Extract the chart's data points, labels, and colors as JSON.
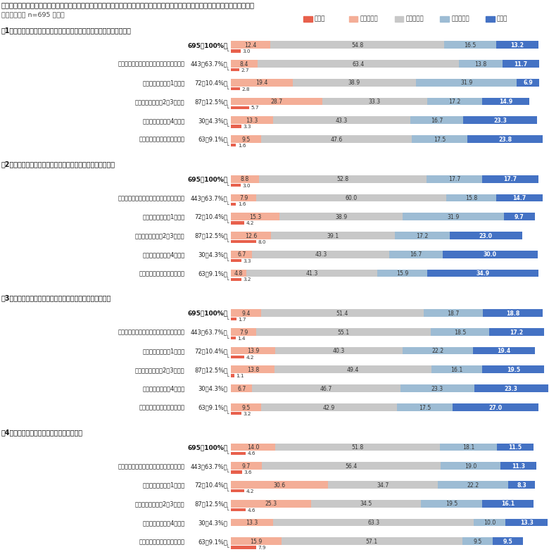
{
  "title": "新型コロナウイルス感染症の流行の前と現在で、あなた自身の社内外の人間関係や人とのつながりにどのような変化がありましたか。",
  "subtitle": "〈単一回答／ n=695 ／％〉",
  "legend_labels": [
    "増えた",
    "やや増えた",
    "変わらない",
    "やや減った",
    "減った"
  ],
  "colors": [
    "#E8604C",
    "#F4AE97",
    "#C8C8C8",
    "#9DBCD4",
    "#4472C4"
  ],
  "sections": [
    {
      "title": "（1）上司や職場の同僚など、社内の業務上の接点が多い人との関わり",
      "rows": [
        {
          "label_name": "",
          "label_n": "695（100%）",
          "indent": false,
          "values": [
            12.4,
            54.8,
            16.5,
            13.2
          ],
          "below": 3.0
        },
        {
          "label_name": "テレワークは（ほとんど）実施していない",
          "label_n": "443（63.7%）",
          "indent": true,
          "values": [
            8.4,
            63.4,
            13.8,
            11.7
          ],
          "below": 2.7
        },
        {
          "label_name": "テレワークは週に1日以下",
          "label_n": "72（10.4%）",
          "indent": true,
          "values": [
            19.4,
            38.9,
            31.9,
            6.9
          ],
          "below": 2.8
        },
        {
          "label_name": "テレワークは週に2～3日程度",
          "label_n": "87（12.5%）",
          "indent": true,
          "values": [
            28.7,
            33.3,
            17.2,
            14.9
          ],
          "below": 5.7
        },
        {
          "label_name": "テレワークは週に4日程度",
          "label_n": "30（4.3%）",
          "indent": true,
          "values": [
            13.3,
            43.3,
            16.7,
            23.3
          ],
          "below": 3.3
        },
        {
          "label_name": "（ほとんど）毎日テレワーク",
          "label_n": "63（9.1%）",
          "indent": true,
          "values": [
            9.5,
            47.6,
            17.5,
            23.8
          ],
          "below": 1.6
        }
      ]
    },
    {
      "title": "（2）他部署の人など、業務上あまり接点のない人との関わり",
      "rows": [
        {
          "label_name": "",
          "label_n": "695（100%）",
          "indent": false,
          "values": [
            8.8,
            52.8,
            17.7,
            17.7
          ],
          "below": 3.0
        },
        {
          "label_name": "テレワークは（ほとんど）実施していない",
          "label_n": "443（63.7%）",
          "indent": true,
          "values": [
            7.9,
            60.0,
            15.8,
            14.7
          ],
          "below": 1.6
        },
        {
          "label_name": "テレワークは週に1日以下",
          "label_n": "72（10.4%）",
          "indent": true,
          "values": [
            15.3,
            38.9,
            31.9,
            9.7
          ],
          "below": 4.2
        },
        {
          "label_name": "テレワークは週に2～3日程度",
          "label_n": "87（12.5%）",
          "indent": true,
          "values": [
            12.6,
            39.1,
            17.2,
            23.0
          ],
          "below": 8.0
        },
        {
          "label_name": "テレワークは週に4日程度",
          "label_n": "30（4.3%）",
          "indent": true,
          "values": [
            6.7,
            43.3,
            16.7,
            30.0
          ],
          "below": 3.3
        },
        {
          "label_name": "（ほとんど）毎日テレワーク",
          "label_n": "63（9.1%）",
          "indent": true,
          "values": [
            4.8,
            41.3,
            15.9,
            34.9
          ],
          "below": 3.2
        }
      ]
    },
    {
      "title": "（3）社外・仕事外の、日頃あまり接点のない人との関わり",
      "rows": [
        {
          "label_name": "",
          "label_n": "695（100%）",
          "indent": false,
          "values": [
            9.4,
            51.4,
            18.7,
            18.8
          ],
          "below": 1.7
        },
        {
          "label_name": "テレワークは（ほとんど）実施していない",
          "label_n": "443（63.7%）",
          "indent": true,
          "values": [
            7.9,
            55.1,
            18.5,
            17.2
          ],
          "below": 1.4
        },
        {
          "label_name": "テレワークは週に1日以下",
          "label_n": "72（10.4%）",
          "indent": true,
          "values": [
            13.9,
            40.3,
            22.2,
            19.4
          ],
          "below": 4.2
        },
        {
          "label_name": "テレワークは週に2～3日程度",
          "label_n": "87（12.5%）",
          "indent": true,
          "values": [
            13.8,
            49.4,
            16.1,
            19.5
          ],
          "below": 1.1
        },
        {
          "label_name": "テレワークは週に4日程度",
          "label_n": "30（4.3%）",
          "indent": true,
          "values": [
            6.7,
            46.7,
            23.3,
            23.3
          ],
          "below": 0.0
        },
        {
          "label_name": "（ほとんど）毎日テレワーク",
          "label_n": "63（9.1%）",
          "indent": true,
          "values": [
            9.5,
            42.9,
            17.5,
            27.0
          ],
          "below": 3.2
        }
      ]
    },
    {
      "title": "（4）家族や友人など、親しい人との関わり",
      "rows": [
        {
          "label_name": "",
          "label_n": "695（100%）",
          "indent": false,
          "values": [
            14.0,
            51.8,
            18.1,
            11.5
          ],
          "below": 4.6
        },
        {
          "label_name": "テレワークは（ほとんど）実施していない",
          "label_n": "443（63.7%）",
          "indent": true,
          "values": [
            9.7,
            56.4,
            19.0,
            11.3
          ],
          "below": 3.6
        },
        {
          "label_name": "テレワークは週に1日以下",
          "label_n": "72（10.4%）",
          "indent": true,
          "values": [
            30.6,
            34.7,
            22.2,
            8.3
          ],
          "below": 4.2
        },
        {
          "label_name": "テレワークは週に2～3日程度",
          "label_n": "87（12.5%）",
          "indent": true,
          "values": [
            25.3,
            34.5,
            19.5,
            16.1
          ],
          "below": 4.6
        },
        {
          "label_name": "テレワークは週に4日程度",
          "label_n": "30（4.3%）",
          "indent": true,
          "values": [
            13.3,
            63.3,
            10.0,
            13.3
          ],
          "below": 0.0
        },
        {
          "label_name": "（ほとんど）毎日テレワーク",
          "label_n": "63（9.1%）",
          "indent": true,
          "values": [
            15.9,
            57.1,
            9.5,
            9.5
          ],
          "below": 7.9
        }
      ]
    }
  ]
}
